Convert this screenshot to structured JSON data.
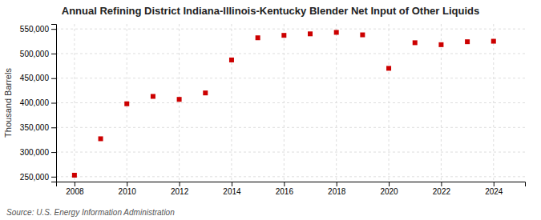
{
  "chart_data": {
    "type": "scatter",
    "title": "Annual Refining District Indiana-Illinois-Kentucky Blender Net Input of Other Liquids",
    "y_label": "Thousand Barrels",
    "source": "Source: U.S. Energy Information Administration",
    "x": [
      2008,
      2009,
      2010,
      2011,
      2012,
      2013,
      2014,
      2015,
      2016,
      2017,
      2018,
      2019,
      2020,
      2021,
      2022,
      2023,
      2024
    ],
    "values": [
      253000,
      327000,
      398000,
      413000,
      407000,
      420000,
      487000,
      532000,
      537000,
      540000,
      543000,
      538000,
      470000,
      522000,
      518000,
      524000,
      525000
    ],
    "color": "#cc0000",
    "marker": "square",
    "xlim": [
      2007.3,
      2025.2
    ],
    "ylim": [
      240000,
      560000
    ],
    "xticks": [
      2008,
      2010,
      2012,
      2014,
      2016,
      2018,
      2020,
      2022,
      2024
    ],
    "yticks": [
      {
        "value": 250000,
        "label": "250,000"
      },
      {
        "value": 300000,
        "label": "300,000"
      },
      {
        "value": 350000,
        "label": "350,000"
      },
      {
        "value": 400000,
        "label": "400,000"
      },
      {
        "value": 450000,
        "label": "450,000"
      },
      {
        "value": 500000,
        "label": "500,000"
      },
      {
        "value": 550000,
        "label": "550,000"
      }
    ],
    "grid": true
  }
}
